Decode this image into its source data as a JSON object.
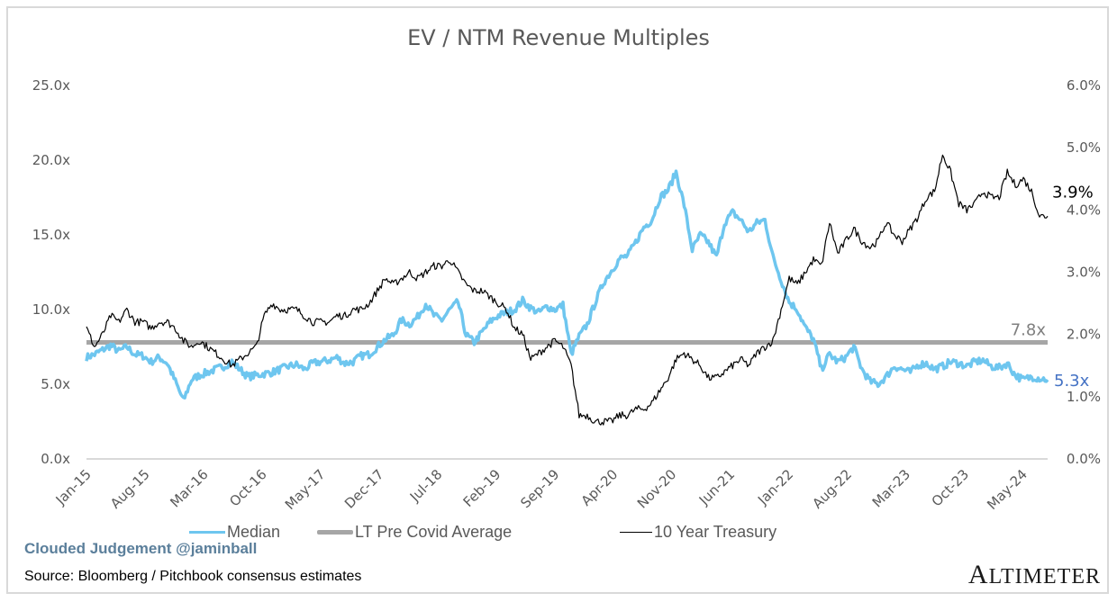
{
  "chart_data": {
    "type": "line",
    "title": "EV / NTM Revenue Multiples",
    "xlabel": "",
    "ylabel": "",
    "y_left": {
      "ticks": [
        "0.0x",
        "5.0x",
        "10.0x",
        "15.0x",
        "20.0x",
        "25.0x"
      ],
      "range": [
        0,
        25
      ]
    },
    "y_right": {
      "ticks": [
        "0.0%",
        "1.0%",
        "2.0%",
        "3.0%",
        "4.0%",
        "5.0%",
        "6.0%"
      ],
      "range": [
        0,
        6
      ]
    },
    "x_ticks": [
      "Jan-15",
      "Aug-15",
      "Mar-16",
      "Oct-16",
      "May-17",
      "Dec-17",
      "Jul-18",
      "Feb-19",
      "Sep-19",
      "Apr-20",
      "Nov-20",
      "Jun-21",
      "Jan-22",
      "Aug-22",
      "Mar-23",
      "Oct-23",
      "May-24"
    ],
    "x_start": "Jan-15",
    "x_end": "Aug-24",
    "grid": false,
    "legend_position": "bottom",
    "series": [
      {
        "name": "Median",
        "axis": "left",
        "color": "#6ec6ef",
        "end_label": "5.3x",
        "values": [
          6.8,
          7.0,
          7.3,
          7.6,
          7.2,
          7.5,
          7.0,
          6.9,
          6.5,
          6.8,
          6.4,
          5.2,
          3.9,
          5.3,
          5.6,
          5.8,
          6.0,
          6.2,
          6.5,
          6.0,
          5.5,
          5.6,
          5.7,
          5.8,
          6.0,
          6.2,
          6.3,
          6.0,
          6.4,
          6.5,
          6.6,
          6.8,
          6.4,
          6.5,
          6.9,
          7.0,
          7.5,
          8.0,
          8.3,
          9.3,
          9.0,
          9.5,
          10.4,
          9.6,
          9.3,
          10.0,
          10.5,
          8.3,
          7.8,
          8.5,
          9.2,
          9.6,
          9.8,
          10.0,
          10.6,
          10.1,
          9.8,
          10.2,
          10.0,
          10.3,
          7.0,
          8.2,
          9.0,
          10.5,
          11.8,
          12.6,
          13.4,
          13.6,
          14.5,
          15.5,
          16.0,
          17.5,
          18.0,
          19.2,
          17.0,
          14.0,
          15.0,
          14.5,
          13.5,
          15.8,
          16.5,
          16.0,
          15.2,
          15.8,
          16.0,
          13.5,
          12.0,
          10.5,
          10.0,
          8.8,
          8.0,
          6.0,
          7.0,
          6.5,
          6.8,
          7.5,
          6.0,
          5.2,
          5.0,
          5.5,
          6.2,
          6.0,
          5.8,
          6.3,
          6.4,
          6.0,
          6.2,
          6.5,
          6.4,
          6.2,
          6.5,
          6.6,
          6.2,
          6.1,
          6.4,
          5.6,
          5.3,
          5.5,
          5.4,
          5.3
        ]
      },
      {
        "name": "LT Pre Covid Average",
        "axis": "left",
        "color": "#a6a6a6",
        "end_label": "7.8x",
        "values": [
          7.8
        ]
      },
      {
        "name": "10 Year Treasury",
        "axis": "right",
        "color": "#000000",
        "end_label": "3.9%",
        "values": [
          2.1,
          1.8,
          2.0,
          2.3,
          2.2,
          2.4,
          2.2,
          2.2,
          2.1,
          2.2,
          2.2,
          2.1,
          1.9,
          1.8,
          1.9,
          1.8,
          1.7,
          1.6,
          1.5,
          1.6,
          1.7,
          1.8,
          2.3,
          2.5,
          2.4,
          2.4,
          2.4,
          2.3,
          2.2,
          2.2,
          2.2,
          2.3,
          2.3,
          2.4,
          2.4,
          2.5,
          2.7,
          2.9,
          2.8,
          2.9,
          3.0,
          2.9,
          3.0,
          3.1,
          3.1,
          3.2,
          3.0,
          2.8,
          2.7,
          2.7,
          2.6,
          2.5,
          2.4,
          2.1,
          2.0,
          1.6,
          1.7,
          1.8,
          1.9,
          1.8,
          1.5,
          0.7,
          0.7,
          0.6,
          0.6,
          0.6,
          0.7,
          0.7,
          0.8,
          0.8,
          0.9,
          1.1,
          1.3,
          1.6,
          1.7,
          1.6,
          1.5,
          1.3,
          1.3,
          1.4,
          1.5,
          1.6,
          1.5,
          1.7,
          1.8,
          1.9,
          2.4,
          2.9,
          2.8,
          3.0,
          3.2,
          3.1,
          3.8,
          3.3,
          3.5,
          3.7,
          3.5,
          3.4,
          3.5,
          3.8,
          3.6,
          3.5,
          3.7,
          3.9,
          4.2,
          4.3,
          4.9,
          4.6,
          4.1,
          4.0,
          4.1,
          4.3,
          4.2,
          4.2,
          4.6,
          4.4,
          4.5,
          4.3,
          3.9,
          3.9
        ]
      }
    ]
  },
  "legend": {
    "median_label": "Median",
    "average_label": "LT Pre Covid Average",
    "treasury_label": "10 Year Treasury"
  },
  "footer": {
    "credit": "Clouded Judgement @jaminball",
    "source": "Source: Bloomberg / Pitchbook consensus estimates",
    "brand": "Altimeter"
  }
}
